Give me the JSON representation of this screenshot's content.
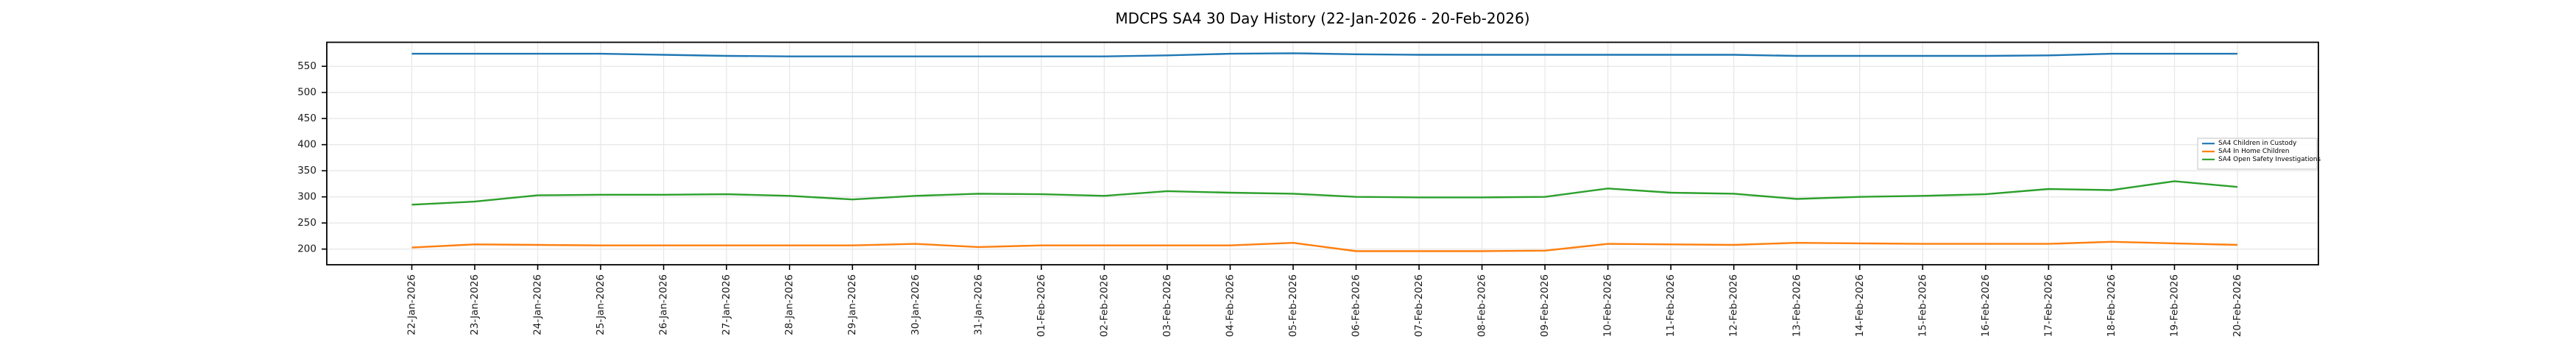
{
  "window": {
    "background": "#ffffff"
  },
  "chart_data": {
    "type": "line",
    "title": "MDCPS SA4 30 Day History (22-Jan-2026 - 20-Feb-2026)",
    "x_labels": [
      "22-Jan-2026",
      "23-Jan-2026",
      "24-Jan-2026",
      "25-Jan-2026",
      "26-Jan-2026",
      "27-Jan-2026",
      "28-Jan-2026",
      "29-Jan-2026",
      "30-Jan-2026",
      "31-Jan-2026",
      "01-Feb-2026",
      "02-Feb-2026",
      "03-Feb-2026",
      "04-Feb-2026",
      "05-Feb-2026",
      "06-Feb-2026",
      "07-Feb-2026",
      "08-Feb-2026",
      "09-Feb-2026",
      "10-Feb-2026",
      "11-Feb-2026",
      "12-Feb-2026",
      "13-Feb-2026",
      "14-Feb-2026",
      "15-Feb-2026",
      "16-Feb-2026",
      "17-Feb-2026",
      "18-Feb-2026",
      "19-Feb-2026",
      "20-Feb-2026"
    ],
    "y_ticks": [
      200,
      250,
      300,
      350,
      400,
      450,
      500,
      550
    ],
    "ylim": [
      170,
      596
    ],
    "grid": true,
    "legend_position": "right-inside",
    "series": [
      {
        "name": "SA4 Children in Custody",
        "color": "#1f77b4",
        "values": [
          574,
          574,
          574,
          574,
          572,
          570,
          569,
          569,
          569,
          569,
          569,
          569,
          571,
          574,
          575,
          573,
          572,
          572,
          572,
          572,
          572,
          572,
          570,
          570,
          570,
          570,
          571,
          574,
          574,
          574
        ]
      },
      {
        "name": "SA4 In Home Children",
        "color": "#ff7f0e",
        "values": [
          203,
          209,
          208,
          207,
          207,
          207,
          207,
          207,
          210,
          204,
          207,
          207,
          207,
          207,
          212,
          196,
          196,
          196,
          197,
          210,
          209,
          208,
          212,
          211,
          210,
          210,
          210,
          214,
          211,
          208
        ]
      },
      {
        "name": "SA4 Open Safety Investigations",
        "color": "#2ca02c",
        "values": [
          285,
          291,
          303,
          304,
          304,
          305,
          302,
          295,
          302,
          306,
          305,
          302,
          311,
          308,
          306,
          300,
          299,
          299,
          300,
          316,
          308,
          306,
          296,
          300,
          302,
          305,
          315,
          313,
          330,
          319
        ]
      }
    ],
    "axis_color": "#000000",
    "grid_color": "#e8e8e8",
    "text_color": "#1a1a1a",
    "legend_border_color": "#cccccc"
  }
}
